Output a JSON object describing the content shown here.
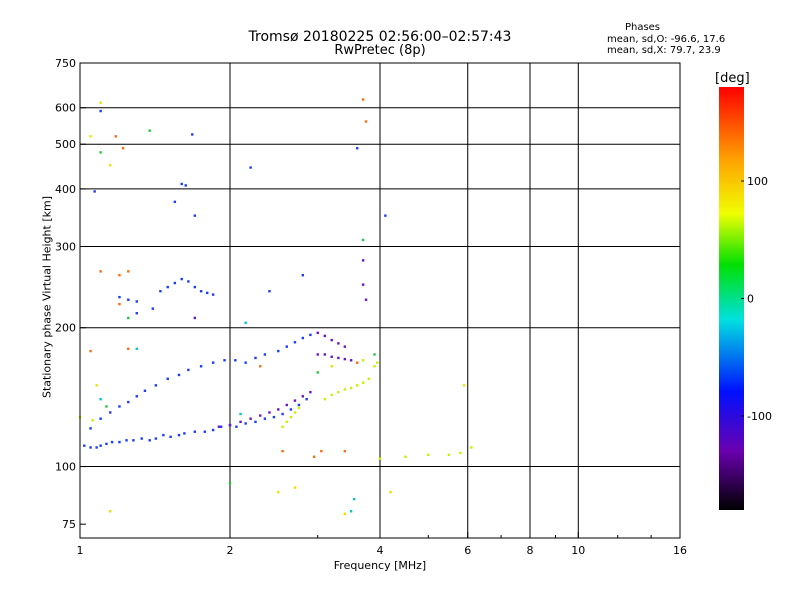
{
  "title_line1": "Tromsø 20180225 02:56:00–02:57:43",
  "title_line2": "RwPretec (8p)",
  "stats": {
    "heading": "Phases",
    "o_line": "mean, sd,O: -96.6, 17.6",
    "x_line": "mean, sd,X:  79.7, 23.9"
  },
  "colorbar": {
    "title": "[deg]",
    "range": [
      -180,
      180
    ],
    "ticks": [
      {
        "label": "100",
        "value": 100
      },
      {
        "label": "0",
        "value": 0
      },
      {
        "label": "-100",
        "value": -100
      }
    ]
  },
  "chart_data": {
    "type": "scatter",
    "xlabel": "Frequency [MHz]",
    "ylabel": "Stationary phase Virtual Height [km]",
    "x_scale": "log",
    "y_scale": "log",
    "xlim": [
      1,
      16
    ],
    "ylim": [
      70,
      750
    ],
    "grid": true,
    "x_ticks": [
      {
        "label": "1",
        "value": 1
      },
      {
        "label": "2",
        "value": 2
      },
      {
        "label": "4",
        "value": 4
      },
      {
        "label": "6",
        "value": 6
      },
      {
        "label": "8",
        "value": 8
      },
      {
        "label": "10",
        "value": 10
      },
      {
        "label": "16",
        "value": 16
      }
    ],
    "x_gridlines": [
      2,
      4,
      6,
      8,
      10
    ],
    "y_ticks": [
      {
        "label": "75",
        "value": 75
      },
      {
        "label": "100",
        "value": 100
      },
      {
        "label": "200",
        "value": 200
      },
      {
        "label": "300",
        "value": 300
      },
      {
        "label": "400",
        "value": 400
      },
      {
        "label": "500",
        "value": 500
      },
      {
        "label": "600",
        "value": 600
      },
      {
        "label": "750",
        "value": 750
      }
    ],
    "y_gridlines": [
      100,
      200,
      300,
      400,
      500,
      600
    ],
    "series": [
      {
        "name": "O-mode trace (blue)",
        "color": "#1a3cff",
        "points": [
          [
            1.02,
            111
          ],
          [
            1.05,
            110
          ],
          [
            1.08,
            110
          ],
          [
            1.1,
            111
          ],
          [
            1.13,
            112
          ],
          [
            1.16,
            113
          ],
          [
            1.2,
            113
          ],
          [
            1.24,
            114
          ],
          [
            1.28,
            114
          ],
          [
            1.33,
            115
          ],
          [
            1.38,
            114
          ],
          [
            1.42,
            115
          ],
          [
            1.47,
            117
          ],
          [
            1.52,
            116
          ],
          [
            1.58,
            117
          ],
          [
            1.62,
            118
          ],
          [
            1.7,
            119
          ],
          [
            1.78,
            119
          ],
          [
            1.85,
            120
          ],
          [
            1.92,
            122
          ],
          [
            2.0,
            123
          ],
          [
            2.06,
            122
          ],
          [
            2.15,
            124
          ],
          [
            2.25,
            125
          ],
          [
            2.35,
            127
          ],
          [
            2.45,
            128
          ],
          [
            2.55,
            130
          ],
          [
            2.65,
            133
          ],
          [
            2.75,
            136
          ],
          [
            2.85,
            140
          ],
          [
            1.05,
            121
          ],
          [
            1.1,
            127
          ],
          [
            1.15,
            131
          ],
          [
            1.2,
            135
          ],
          [
            1.25,
            138
          ],
          [
            1.3,
            142
          ],
          [
            1.35,
            146
          ],
          [
            1.42,
            150
          ],
          [
            1.5,
            155
          ],
          [
            1.58,
            158
          ],
          [
            1.65,
            162
          ],
          [
            1.75,
            165
          ],
          [
            1.85,
            168
          ],
          [
            1.95,
            170
          ],
          [
            2.05,
            170
          ],
          [
            2.15,
            168
          ],
          [
            2.25,
            172
          ],
          [
            2.35,
            175
          ],
          [
            2.5,
            178
          ],
          [
            2.6,
            182
          ],
          [
            2.7,
            186
          ],
          [
            2.8,
            190
          ],
          [
            2.9,
            193
          ],
          [
            1.2,
            233
          ],
          [
            1.25,
            230
          ],
          [
            1.3,
            228
          ],
          [
            1.45,
            240
          ],
          [
            1.5,
            245
          ],
          [
            1.55,
            250
          ],
          [
            1.6,
            255
          ],
          [
            1.65,
            252
          ],
          [
            1.7,
            245
          ],
          [
            1.75,
            240
          ],
          [
            1.8,
            238
          ],
          [
            1.85,
            236
          ],
          [
            1.6,
            410
          ],
          [
            1.63,
            407
          ],
          [
            1.55,
            375
          ],
          [
            1.68,
            525
          ],
          [
            1.7,
            350
          ],
          [
            1.1,
            590
          ],
          [
            2.2,
            445
          ],
          [
            2.8,
            260
          ],
          [
            4.1,
            350
          ],
          [
            3.6,
            490
          ],
          [
            1.07,
            395
          ],
          [
            1.4,
            220
          ],
          [
            1.3,
            215
          ],
          [
            2.4,
            240
          ]
        ]
      },
      {
        "name": "purple trace",
        "color": "#6a14c8",
        "points": [
          [
            1.9,
            122
          ],
          [
            2.0,
            123
          ],
          [
            2.1,
            125
          ],
          [
            2.2,
            127
          ],
          [
            2.3,
            129
          ],
          [
            2.4,
            131
          ],
          [
            2.5,
            133
          ],
          [
            2.6,
            136
          ],
          [
            2.7,
            139
          ],
          [
            2.8,
            142
          ],
          [
            2.9,
            145
          ],
          [
            3.0,
            175
          ],
          [
            3.1,
            175
          ],
          [
            3.2,
            173
          ],
          [
            3.3,
            172
          ],
          [
            3.4,
            171
          ],
          [
            3.5,
            170
          ],
          [
            3.0,
            195
          ],
          [
            3.1,
            192
          ],
          [
            3.2,
            188
          ],
          [
            3.3,
            185
          ],
          [
            3.4,
            182
          ],
          [
            3.7,
            280
          ],
          [
            3.7,
            248
          ],
          [
            3.75,
            230
          ],
          [
            1.7,
            210
          ]
        ]
      },
      {
        "name": "X-mode trace (yellow-green)",
        "color": "#c8f000",
        "points": [
          [
            2.55,
            122
          ],
          [
            2.6,
            125
          ],
          [
            2.65,
            128
          ],
          [
            2.7,
            131
          ],
          [
            2.75,
            134
          ],
          [
            3.1,
            140
          ],
          [
            3.2,
            143
          ],
          [
            3.3,
            145
          ],
          [
            3.4,
            147
          ],
          [
            3.5,
            148
          ],
          [
            3.6,
            150
          ],
          [
            3.7,
            152
          ],
          [
            3.8,
            155
          ],
          [
            3.9,
            165
          ],
          [
            4.0,
            104
          ],
          [
            4.5,
            105
          ],
          [
            5.0,
            106
          ],
          [
            5.5,
            106
          ],
          [
            5.8,
            107
          ],
          [
            6.1,
            110
          ],
          [
            3.95,
            168
          ],
          [
            3.7,
            170
          ],
          [
            1.0,
            128
          ],
          [
            1.06,
            126
          ]
        ]
      },
      {
        "name": "green points",
        "color": "#22c83a",
        "points": [
          [
            1.38,
            535
          ],
          [
            1.1,
            480
          ],
          [
            1.13,
            135
          ],
          [
            3.9,
            175
          ],
          [
            3.7,
            310
          ],
          [
            2.0,
            92
          ],
          [
            1.25,
            210
          ],
          [
            3.0,
            160
          ]
        ]
      },
      {
        "name": "orange/red points",
        "color": "#ff6a10",
        "points": [
          [
            1.18,
            520
          ],
          [
            1.22,
            490
          ],
          [
            1.2,
            260
          ],
          [
            1.25,
            265
          ],
          [
            3.7,
            625
          ],
          [
            3.75,
            560
          ],
          [
            3.4,
            108
          ],
          [
            1.2,
            225
          ],
          [
            1.25,
            180
          ],
          [
            3.05,
            108
          ],
          [
            2.95,
            105
          ],
          [
            3.6,
            168
          ],
          [
            2.55,
            108
          ],
          [
            1.1,
            265
          ],
          [
            1.05,
            178
          ],
          [
            2.3,
            165
          ]
        ]
      },
      {
        "name": "yellow points",
        "color": "#f0e000",
        "points": [
          [
            1.15,
            450
          ],
          [
            1.1,
            615
          ],
          [
            1.05,
            520
          ],
          [
            1.15,
            80
          ],
          [
            2.5,
            88
          ],
          [
            2.7,
            90
          ],
          [
            3.4,
            79
          ],
          [
            4.2,
            88
          ],
          [
            1.08,
            150
          ],
          [
            3.2,
            165
          ],
          [
            5.9,
            150
          ]
        ]
      },
      {
        "name": "cyan/teal points",
        "color": "#00c8c8",
        "points": [
          [
            3.5,
            80
          ],
          [
            3.55,
            85
          ],
          [
            1.3,
            180
          ],
          [
            2.15,
            205
          ],
          [
            1.1,
            140
          ],
          [
            2.1,
            130
          ]
        ]
      }
    ]
  }
}
